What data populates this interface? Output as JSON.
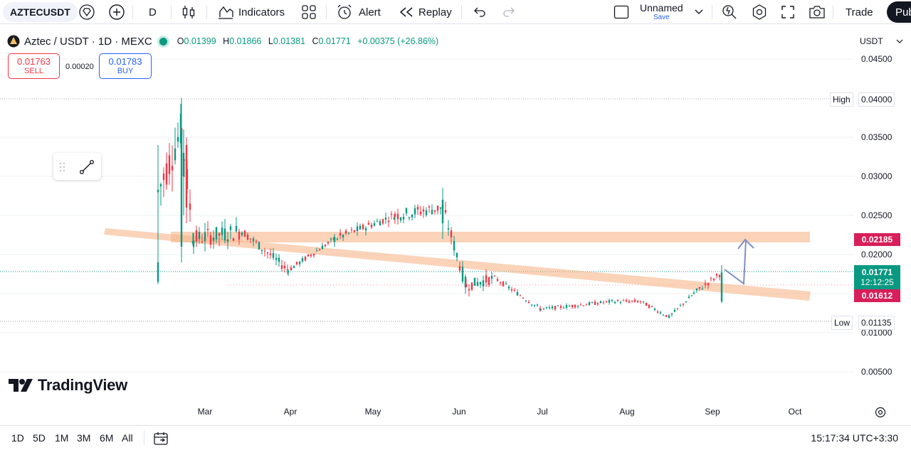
{
  "toolbar": {
    "symbol": "AZTECUSDT",
    "interval": "D",
    "indicators_label": "Indicators",
    "alert_label": "Alert",
    "replay_label": "Replay",
    "layout_name": "Unnamed",
    "layout_save": "Save",
    "trade_label": "Trade",
    "publish_label": "Pub"
  },
  "legend": {
    "title": "Aztec / USDT · 1D · MEXC",
    "o_key": "O",
    "o": "0.01399",
    "h_key": "H",
    "h": "0.01866",
    "l_key": "L",
    "l": "0.01381",
    "c_key": "C",
    "c": "0.01771",
    "change": "+0.00375 (+26.86%)"
  },
  "order": {
    "sell_price": "0.01763",
    "sell_label": "SELL",
    "spread": "0.00020",
    "buy_price": "0.01783",
    "buy_label": "BUY"
  },
  "price_scale": {
    "currency": "USDT",
    "ticks": [
      "0.04500",
      "0.04000",
      "0.03500",
      "0.03000",
      "0.02500",
      "0.02000",
      "0.01000",
      "0.00500"
    ],
    "high_label": "High",
    "high_value": "0.04000",
    "low_label": "Low",
    "low_value": "0.01135",
    "tag_upper": "0.02185",
    "tag_last": "0.01771",
    "tag_countdown": "12:12:25",
    "tag_lower": "0.01612"
  },
  "time_axis": [
    "Mar",
    "Apr",
    "May",
    "Jun",
    "Jul",
    "Aug",
    "Sep",
    "Oct"
  ],
  "bottom": {
    "ranges": [
      "1D",
      "5D",
      "1M",
      "3M",
      "6M",
      "All"
    ],
    "clock": "15:17:34 UTC+3:30"
  },
  "brand": {
    "name": "TradingView"
  },
  "colors": {
    "up": "#089981",
    "down": "#f23645",
    "zone": "#f7b58a",
    "arrow": "#7f8fbf",
    "accent": "#2962ff"
  },
  "chart_data": {
    "type": "candlestick",
    "ylim": [
      0.005,
      0.045
    ],
    "x_range": [
      "Feb 2025",
      "Oct 2025"
    ],
    "series": [
      {
        "name": "AZTECUSDT",
        "approx_path": [
          {
            "t": "Feb 21",
            "o": 0.0165,
            "h": 0.034,
            "l": 0.0162,
            "c": 0.028
          },
          {
            "t": "Feb 27",
            "o": 0.021,
            "h": 0.04,
            "l": 0.019,
            "c": 0.036
          },
          {
            "t": "Mar 5",
            "o": 0.03,
            "h": 0.032,
            "l": 0.02,
            "c": 0.022
          },
          {
            "t": "Mar 20",
            "o": 0.022,
            "h": 0.027,
            "l": 0.02,
            "c": 0.023
          },
          {
            "t": "Apr 1",
            "o": 0.019,
            "h": 0.02,
            "l": 0.017,
            "c": 0.018
          },
          {
            "t": "Apr 20",
            "o": 0.021,
            "h": 0.023,
            "l": 0.02,
            "c": 0.022
          },
          {
            "t": "May 10",
            "o": 0.021,
            "h": 0.026,
            "l": 0.02,
            "c": 0.025
          },
          {
            "t": "May 25",
            "o": 0.024,
            "h": 0.029,
            "l": 0.022,
            "c": 0.026
          },
          {
            "t": "Jun 3",
            "o": 0.023,
            "h": 0.024,
            "l": 0.015,
            "c": 0.016
          },
          {
            "t": "Jun 12",
            "o": 0.016,
            "h": 0.018,
            "l": 0.015,
            "c": 0.017
          },
          {
            "t": "Jul 1",
            "o": 0.013,
            "h": 0.014,
            "l": 0.012,
            "c": 0.013
          },
          {
            "t": "Jul 20",
            "o": 0.014,
            "h": 0.015,
            "l": 0.013,
            "c": 0.014
          },
          {
            "t": "Aug 10",
            "o": 0.014,
            "h": 0.015,
            "l": 0.013,
            "c": 0.014
          },
          {
            "t": "Aug 20",
            "o": 0.012,
            "h": 0.013,
            "l": 0.011,
            "c": 0.012
          },
          {
            "t": "Aug 28",
            "o": 0.015,
            "h": 0.016,
            "l": 0.014,
            "c": 0.015
          },
          {
            "t": "Sep 4",
            "o": 0.01399,
            "h": 0.01866,
            "l": 0.01381,
            "c": 0.01771
          }
        ]
      }
    ]
  }
}
